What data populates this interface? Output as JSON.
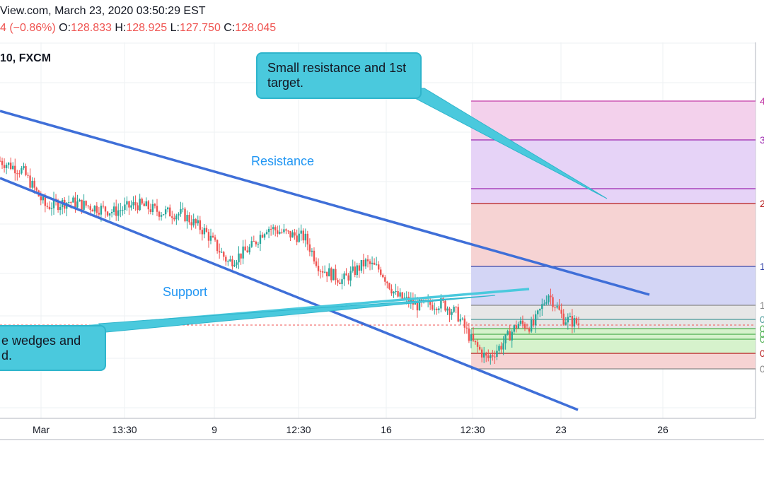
{
  "header": {
    "line1": "View.com, March 23, 2020 03:50:29 EST",
    "change": "4 (−0.86%)",
    "o_label": "O:",
    "o_value": "128.833",
    "h_label": "H:",
    "h_value": "128.925",
    "l_label": "L:",
    "l_value": "127.750",
    "c_label": "C:",
    "c_value": "128.045",
    "symbol": "10, FXCM"
  },
  "annotations": {
    "callout_top": "Small resistance and 1st target.",
    "callout_bottom": "e wedges and d.",
    "resistance": "Resistance",
    "support": "Support"
  },
  "colors": {
    "trendline": "#3f6fd8",
    "support_line": "#4ac9dd",
    "candle_up": "#26a69a",
    "candle_down": "#ef5350",
    "fib_pink": "#f3d1ec",
    "fib_purple": "#e6d3f7",
    "fib_red": "#f6d3d3",
    "fib_blue": "#d3d5f5",
    "fib_gray": "#e6e6e6",
    "fib_green": "#d6f2cc"
  },
  "chart_data": {
    "type": "candlestick",
    "x_tick_labels": [
      "Mar",
      "13:30",
      "9",
      "12:30",
      "16",
      "12:30",
      "23",
      "26"
    ],
    "fib_right_labels": [
      "4",
      "3",
      "2",
      "1",
      "1",
      "0",
      "0",
      "0",
      "0",
      "0",
      "0"
    ],
    "last_price_line": "dashed red at 128.045",
    "price_path": [
      {
        "t": 0,
        "c": 0.84
      },
      {
        "t": 0.03,
        "c": 0.8
      },
      {
        "t": 0.06,
        "c": 0.66
      },
      {
        "t": 0.09,
        "c": 0.68
      },
      {
        "t": 0.12,
        "c": 0.66
      },
      {
        "t": 0.15,
        "c": 0.64
      },
      {
        "t": 0.18,
        "c": 0.67
      },
      {
        "t": 0.21,
        "c": 0.64
      },
      {
        "t": 0.24,
        "c": 0.63
      },
      {
        "t": 0.27,
        "c": 0.56
      },
      {
        "t": 0.3,
        "c": 0.44
      },
      {
        "t": 0.33,
        "c": 0.5
      },
      {
        "t": 0.35,
        "c": 0.58
      },
      {
        "t": 0.38,
        "c": 0.55
      },
      {
        "t": 0.4,
        "c": 0.54
      },
      {
        "t": 0.42,
        "c": 0.42
      },
      {
        "t": 0.45,
        "c": 0.37
      },
      {
        "t": 0.48,
        "c": 0.44
      },
      {
        "t": 0.5,
        "c": 0.41
      },
      {
        "t": 0.52,
        "c": 0.31
      },
      {
        "t": 0.55,
        "c": 0.27
      },
      {
        "t": 0.58,
        "c": 0.28
      },
      {
        "t": 0.6,
        "c": 0.24
      },
      {
        "t": 0.62,
        "c": 0.13
      },
      {
        "t": 0.64,
        "c": 0.06
      },
      {
        "t": 0.66,
        "c": 0.12
      },
      {
        "t": 0.68,
        "c": 0.2
      },
      {
        "t": 0.7,
        "c": 0.19
      },
      {
        "t": 0.72,
        "c": 0.32
      },
      {
        "t": 0.74,
        "c": 0.22
      },
      {
        "t": 0.76,
        "c": 0.2
      }
    ]
  }
}
